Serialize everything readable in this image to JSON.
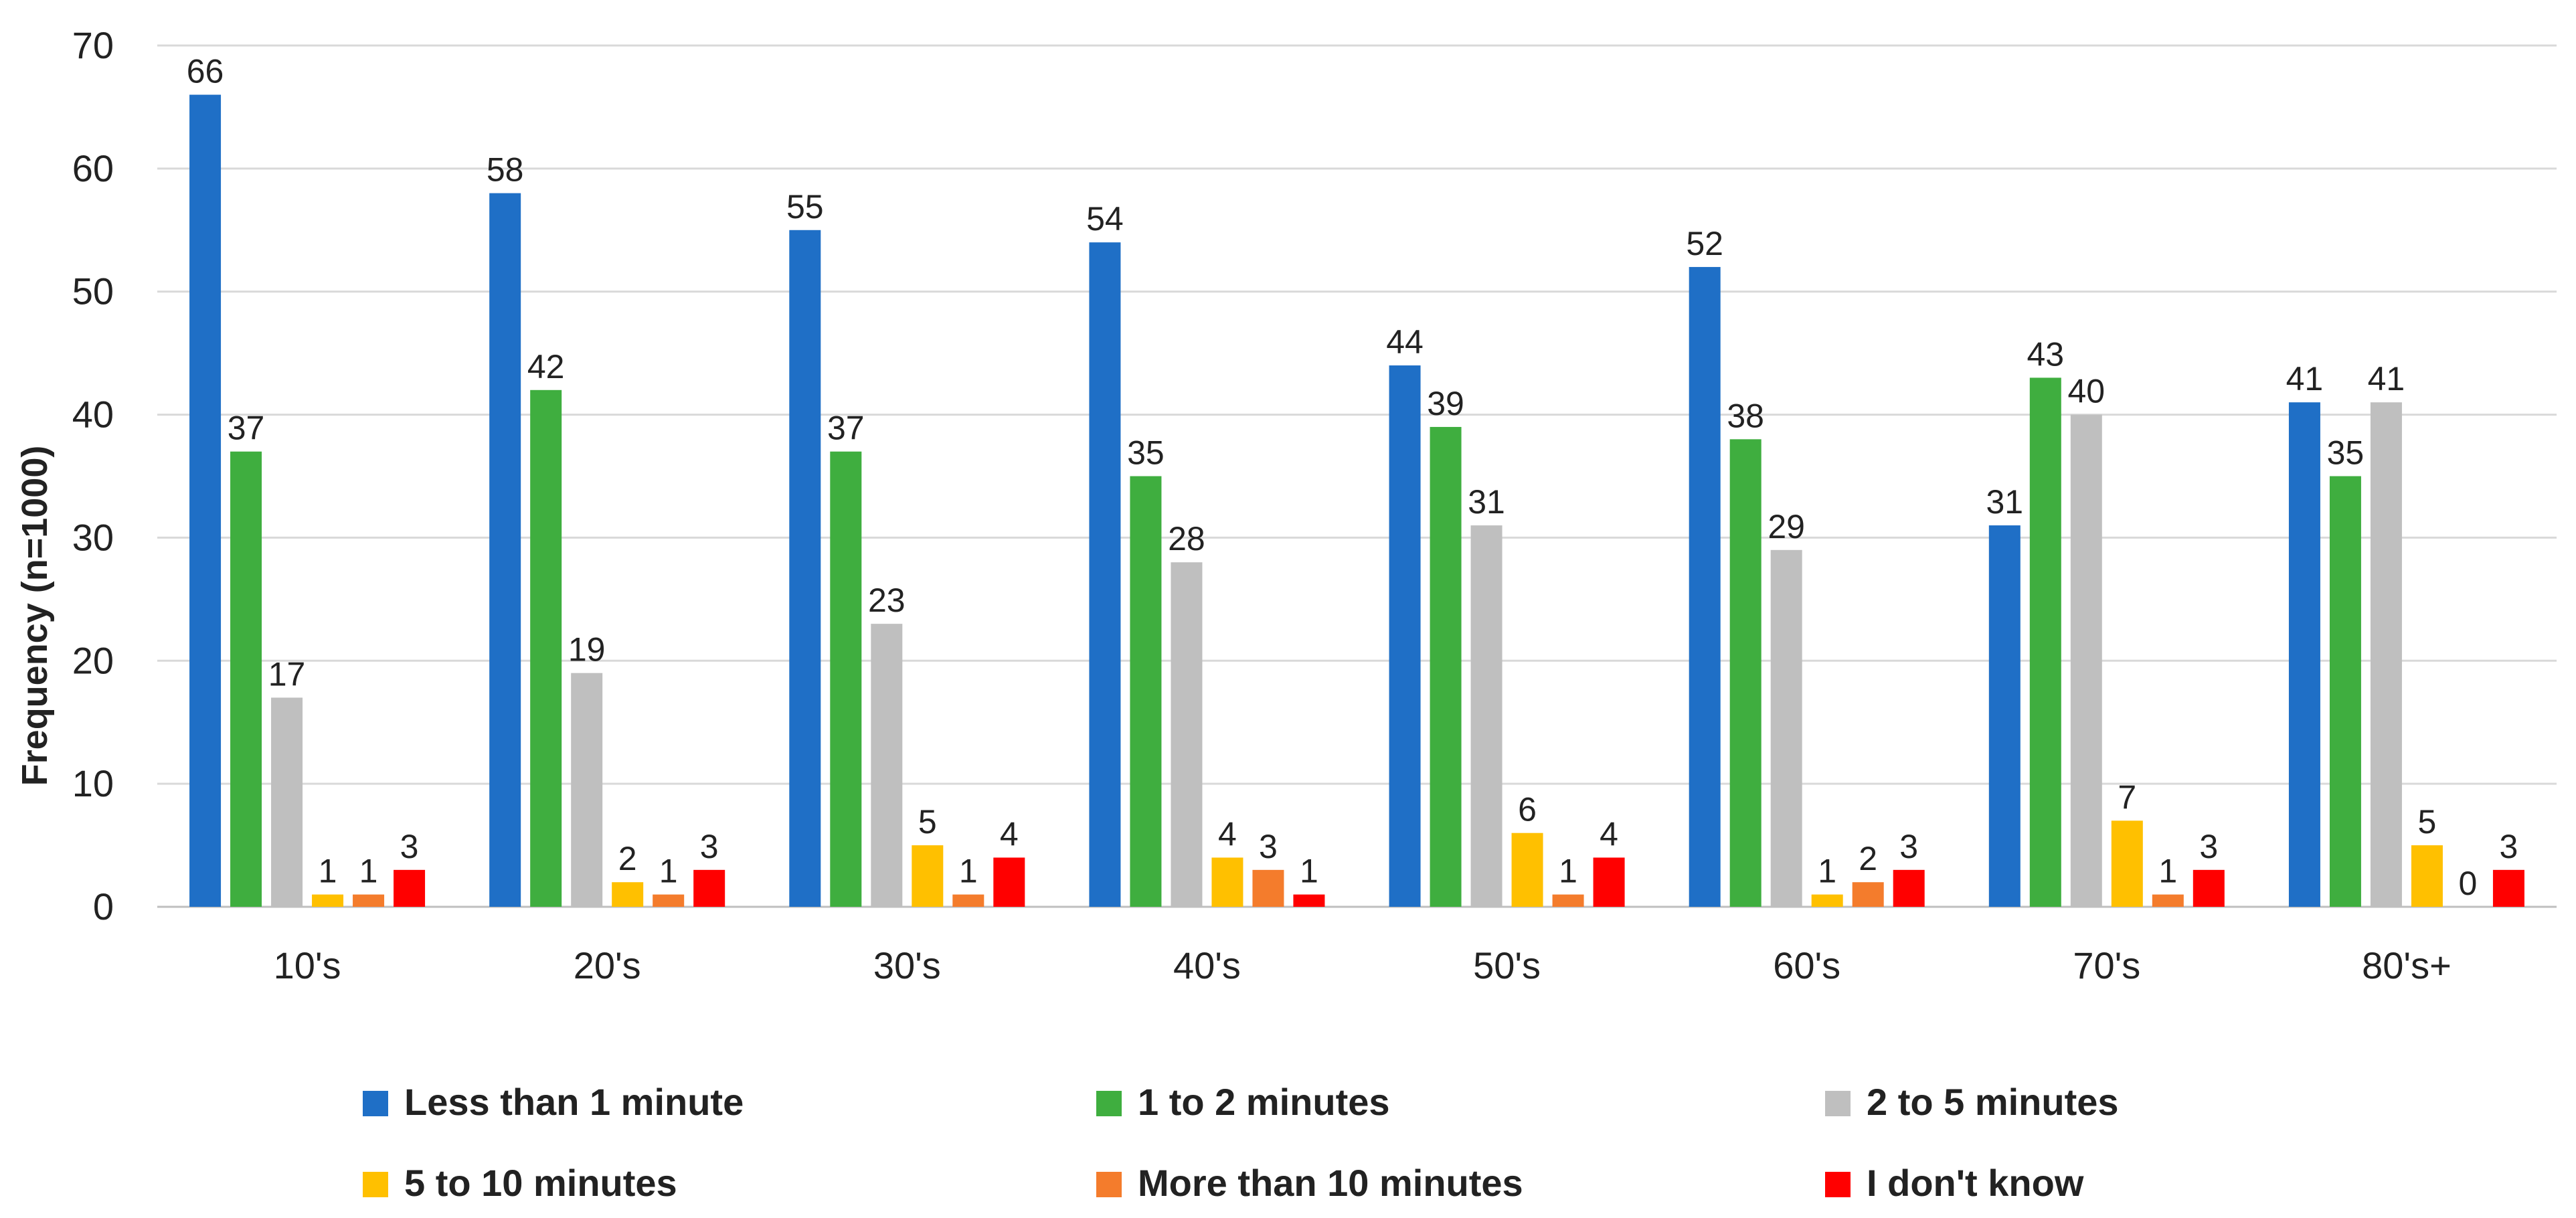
{
  "chart_data": {
    "type": "bar",
    "title": "",
    "xlabel": "",
    "ylabel": "Frequency (n=1000)",
    "ylim": [
      0,
      70
    ],
    "yticks": [
      0,
      10,
      20,
      30,
      40,
      50,
      60,
      70
    ],
    "grid": true,
    "legend_position": "bottom",
    "categories": [
      "10's",
      "20's",
      "30's",
      "40's",
      "50's",
      "60's",
      "70's",
      "80's+"
    ],
    "series": [
      {
        "name": "Less than 1 minute",
        "color": "#1f6fc6",
        "values": [
          66,
          58,
          55,
          54,
          44,
          52,
          31,
          41
        ]
      },
      {
        "name": "1 to 2 minutes",
        "color": "#3fae3f",
        "values": [
          37,
          42,
          37,
          35,
          39,
          38,
          43,
          35
        ]
      },
      {
        "name": "2 to 5 minutes",
        "color": "#bfbfbf",
        "values": [
          17,
          19,
          23,
          28,
          31,
          29,
          40,
          41
        ]
      },
      {
        "name": "5 to 10 minutes",
        "color": "#ffc000",
        "values": [
          1,
          2,
          5,
          4,
          6,
          1,
          7,
          5
        ]
      },
      {
        "name": "More than 10 minutes",
        "color": "#f47c2c",
        "values": [
          1,
          1,
          1,
          3,
          1,
          2,
          1,
          0
        ]
      },
      {
        "name": "I don't know",
        "color": "#ff0000",
        "values": [
          3,
          3,
          4,
          1,
          4,
          3,
          3,
          3
        ]
      }
    ]
  }
}
